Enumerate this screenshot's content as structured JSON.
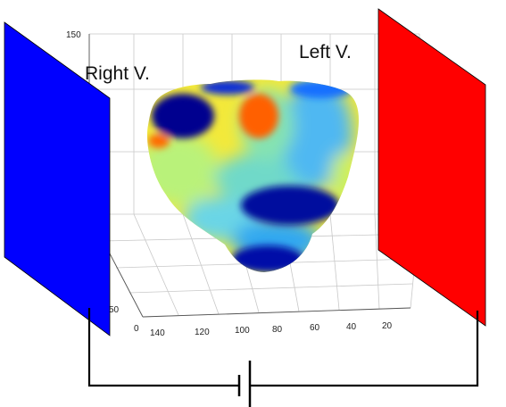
{
  "labels": {
    "right": "Right V.",
    "left": "Left V."
  },
  "axis": {
    "z_top_tick": "150",
    "y_ticks": [
      "50",
      "0"
    ],
    "x_ticks": [
      "140",
      "120",
      "100",
      "80",
      "60",
      "40",
      "20"
    ]
  },
  "colors": {
    "right_plate": "#0000ff",
    "left_plate": "#ff0000",
    "circuit": "#000000",
    "grid": "#c8c8c8"
  }
}
